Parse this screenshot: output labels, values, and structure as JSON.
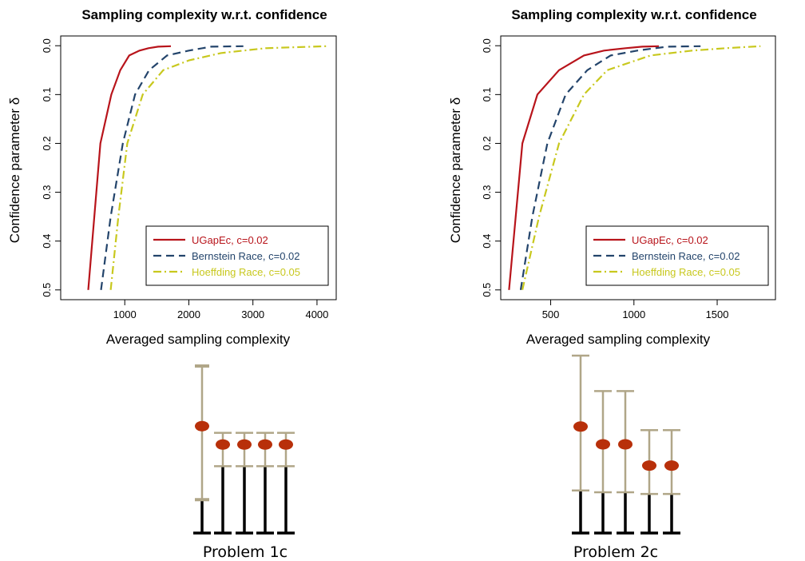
{
  "colors": {
    "ugapec": "#b8141b",
    "bernstein": "#23446b",
    "hoeffding": "#c8c81e",
    "errorbar": "#b0a688",
    "base": "#000000",
    "marker": "#b8300a"
  },
  "chart_data": [
    {
      "type": "line",
      "title": "Sampling complexity w.r.t. confidence",
      "xlabel": "Averaged sampling complexity",
      "ylabel": "Confidence parameter δ",
      "xlim": [
        0,
        4300
      ],
      "ylim": [
        0.52,
        -0.02
      ],
      "y_axis_reversed": true,
      "xticks": [
        1000,
        2000,
        3000,
        4000
      ],
      "yticks": [
        0.0,
        0.1,
        0.2,
        0.3,
        0.4,
        0.5
      ],
      "ytick_labels": [
        "0.0",
        "0.1",
        "0.2",
        "0.3",
        "0.4",
        "0.5"
      ],
      "grid": false,
      "legend_position": "bottom-right",
      "series": [
        {
          "name": "UGapEc, c=0.02",
          "style": "solid",
          "color": "#b8141b",
          "x": [
            430,
            620,
            790,
            930,
            1070,
            1230,
            1370,
            1520,
            1720
          ],
          "y": [
            0.5,
            0.2,
            0.1,
            0.05,
            0.02,
            0.01,
            0.005,
            0.002,
            0.001
          ]
        },
        {
          "name": "Bernstein Race, c=0.02",
          "style": "dashed",
          "color": "#23446b",
          "x": [
            630,
            780,
            970,
            1160,
            1380,
            1660,
            2000,
            2350,
            2850
          ],
          "y": [
            0.5,
            0.35,
            0.2,
            0.1,
            0.05,
            0.02,
            0.01,
            0.002,
            0.001
          ]
        },
        {
          "name": "Hoeffding Race, c=0.05",
          "style": "dashdot",
          "color": "#c8c81e",
          "x": [
            780,
            900,
            1040,
            1280,
            1600,
            2000,
            2500,
            3200,
            4150
          ],
          "y": [
            0.5,
            0.35,
            0.2,
            0.1,
            0.05,
            0.03,
            0.015,
            0.005,
            0.001
          ]
        }
      ]
    },
    {
      "type": "line",
      "title": "Sampling complexity w.r.t. confidence",
      "xlabel": "Averaged sampling complexity",
      "ylabel": "Confidence parameter δ",
      "xlim": [
        200,
        1850
      ],
      "ylim": [
        0.52,
        -0.02
      ],
      "y_axis_reversed": true,
      "xticks": [
        500,
        1000,
        1500
      ],
      "yticks": [
        0.0,
        0.1,
        0.2,
        0.3,
        0.4,
        0.5
      ],
      "ytick_labels": [
        "0.0",
        "0.1",
        "0.2",
        "0.3",
        "0.4",
        "0.5"
      ],
      "grid": false,
      "legend_position": "bottom-right",
      "series": [
        {
          "name": "UGapEc, c=0.02",
          "style": "solid",
          "color": "#b8141b",
          "x": [
            250,
            330,
            420,
            550,
            700,
            820,
            950,
            1050,
            1150
          ],
          "y": [
            0.5,
            0.2,
            0.1,
            0.05,
            0.02,
            0.01,
            0.005,
            0.002,
            0.001
          ]
        },
        {
          "name": "Bernstein Race, c=0.02",
          "style": "dashed",
          "color": "#23446b",
          "x": [
            320,
            390,
            480,
            590,
            720,
            860,
            1020,
            1200,
            1400
          ],
          "y": [
            0.5,
            0.35,
            0.2,
            0.1,
            0.05,
            0.02,
            0.01,
            0.002,
            0.001
          ]
        },
        {
          "name": "Hoeffding Race, c=0.05",
          "style": "dashdot",
          "color": "#c8c81e",
          "x": [
            330,
            430,
            550,
            700,
            840,
            1100,
            1350,
            1550,
            1760
          ],
          "y": [
            0.5,
            0.35,
            0.2,
            0.1,
            0.05,
            0.02,
            0.01,
            0.005,
            0.001
          ]
        }
      ]
    },
    {
      "type": "errorbar",
      "caption": "Problem 1c",
      "points": [
        {
          "value": 0.64,
          "lower": 0.2,
          "upper": 1.0
        },
        {
          "value": 0.53,
          "lower": 0.4,
          "upper": 0.6
        },
        {
          "value": 0.53,
          "lower": 0.4,
          "upper": 0.6
        },
        {
          "value": 0.53,
          "lower": 0.4,
          "upper": 0.6
        },
        {
          "value": 0.53,
          "lower": 0.4,
          "upper": 0.6
        }
      ]
    },
    {
      "type": "errorbar",
      "caption": "Problem 2c",
      "points": [
        {
          "value": 0.6,
          "lower": 0.24,
          "upper": 1.0
        },
        {
          "value": 0.5,
          "lower": 0.23,
          "upper": 0.8
        },
        {
          "value": 0.5,
          "lower": 0.23,
          "upper": 0.8
        },
        {
          "value": 0.38,
          "lower": 0.22,
          "upper": 0.58
        },
        {
          "value": 0.38,
          "lower": 0.22,
          "upper": 0.58
        }
      ]
    }
  ]
}
